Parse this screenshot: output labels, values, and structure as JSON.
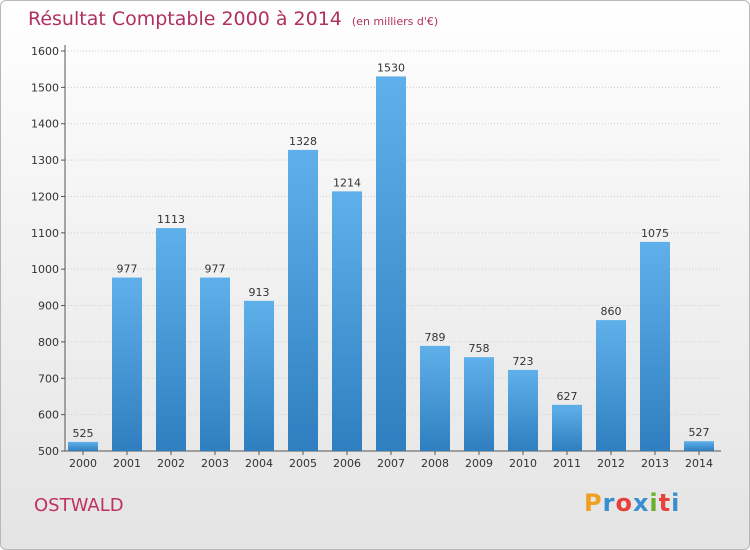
{
  "title": "Résultat Comptable 2000 à 2014",
  "unit": "(en milliers d'€)",
  "city": "OSTWALD",
  "logo": {
    "letters": [
      "P",
      "r",
      "o",
      "x",
      "i",
      "t",
      "i"
    ],
    "colors": [
      "#f0a020",
      "#3a8fd0",
      "#e8403a",
      "#3a8fd0",
      "#6ab02a",
      "#e8403a",
      "#3a8fd0"
    ]
  },
  "colors": {
    "bar_top": "#5fb0ea",
    "bar_bottom": "#2f7fc0",
    "title": "#b03060"
  },
  "chart_data": {
    "type": "bar",
    "categories": [
      "2000",
      "2001",
      "2002",
      "2003",
      "2004",
      "2005",
      "2006",
      "2007",
      "2008",
      "2009",
      "2010",
      "2011",
      "2012",
      "2013",
      "2014"
    ],
    "values": [
      525,
      977,
      1113,
      977,
      913,
      1328,
      1214,
      1530,
      789,
      758,
      723,
      627,
      860,
      1075,
      527
    ],
    "ylim": [
      500,
      1600
    ],
    "yticks": [
      500,
      600,
      700,
      800,
      900,
      1000,
      1100,
      1200,
      1300,
      1400,
      1500,
      1600
    ],
    "grid": true
  }
}
